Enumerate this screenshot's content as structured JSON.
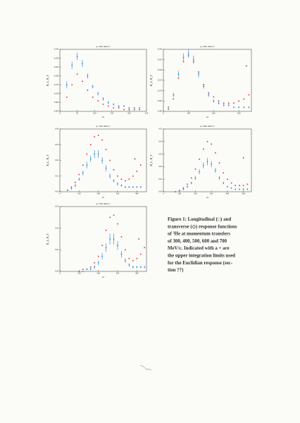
{
  "chart_data": [
    {
      "type": "scatter",
      "title": "q= 300. MeV/c",
      "x_label": "ω",
      "y_label": "R_L, R_T",
      "xlim": [
        0,
        250
      ],
      "xticks": [
        0,
        50,
        100,
        150,
        200,
        250
      ],
      "ylim": [
        0,
        0.035
      ],
      "yticks": [
        {
          "value": 0,
          "label": "0.000"
        },
        0.005,
        {
          "value": 0.01,
          "label": "0.010"
        },
        0.015,
        {
          "value": 0.02,
          "label": "0.020"
        },
        0.025,
        {
          "value": 0.03,
          "label": "0.030"
        },
        0.035
      ],
      "series": [
        {
          "color": "#e0302a",
          "x": [
            20,
            35,
            50,
            65,
            80,
            95,
            110,
            125,
            140,
            155,
            170,
            185,
            200,
            215,
            230
          ],
          "values": [
            0.008,
            0.015,
            0.021,
            0.017,
            0.012,
            0.008,
            0.006,
            0.004,
            0.003,
            0.002,
            0.002,
            0.001,
            0.001,
            0.001,
            0.001
          ]
        },
        {
          "color": "#3b8fd9",
          "x": [
            20,
            35,
            50,
            65,
            80,
            95,
            110,
            125,
            140,
            155,
            170,
            185,
            200,
            215,
            230
          ],
          "values": [
            0.015,
            0.026,
            0.031,
            0.027,
            0.02,
            0.014,
            0.01,
            0.007,
            0.005,
            0.004,
            0.003,
            0.003,
            0.002,
            0.002,
            0.002
          ],
          "errors": [
            0.002,
            0.002,
            0.002,
            0.002,
            0.0015,
            0.001,
            0.001,
            0.001,
            0.0008,
            0.0006,
            0.0005,
            0.0005,
            0.0004,
            0.0004,
            0.0004
          ]
        }
      ]
    },
    {
      "type": "scatter",
      "title": "q= 400. MeV/c",
      "x_label": "ω",
      "y_label": "R_L, R_T",
      "xlim": [
        0,
        350
      ],
      "xticks": [
        0,
        100,
        200,
        300
      ],
      "ylim": [
        0,
        0.03
      ],
      "yticks": [
        {
          "value": 0,
          "label": "0.000"
        },
        0.005,
        {
          "value": 0.01,
          "label": "0.010"
        },
        0.015,
        {
          "value": 0.02,
          "label": "0.020"
        },
        0.025,
        {
          "value": 0.03,
          "label": "0.030"
        }
      ],
      "upper_limit": {
        "x": 330,
        "y": 0.022
      },
      "series": [
        {
          "color": "#e0302a",
          "x": [
            20,
            40,
            60,
            80,
            100,
            120,
            140,
            160,
            180,
            200,
            220,
            240,
            260,
            280,
            300,
            320,
            340
          ],
          "values": [
            0.001,
            0.006,
            0.016,
            0.024,
            0.027,
            0.024,
            0.019,
            0.013,
            0.009,
            0.007,
            0.005,
            0.004,
            0.004,
            0.004,
            0.005,
            0.006,
            0.008
          ]
        },
        {
          "color": "#3b8fd9",
          "x": [
            20,
            40,
            60,
            80,
            100,
            120,
            140,
            160,
            180,
            200,
            220,
            240,
            260,
            280,
            300,
            320,
            340
          ],
          "values": [
            0.002,
            0.008,
            0.018,
            0.026,
            0.028,
            0.025,
            0.018,
            0.012,
            0.008,
            0.005,
            0.004,
            0.003,
            0.003,
            0.002,
            0.002,
            0.002,
            0.002
          ],
          "errors": [
            0.0005,
            0.001,
            0.0015,
            0.002,
            0.002,
            0.002,
            0.0015,
            0.001,
            0.001,
            0.0008,
            0.0006,
            0.0005,
            0.0005,
            0.0004,
            0.0004,
            0.0004,
            0.0004
          ]
        }
      ]
    },
    {
      "type": "scatter",
      "title": "q= 500. MeV/c",
      "x_label": "ω",
      "y_label": "R_L, R_T",
      "xlim": [
        0,
        450
      ],
      "xticks": [
        0,
        100,
        200,
        300,
        400
      ],
      "ylim": [
        0,
        0.04
      ],
      "yticks": [
        {
          "value": 0,
          "label": "0.00"
        },
        0.01,
        0.02,
        0.03,
        0.04
      ],
      "upper_limit": {
        "x": 390,
        "y": 0.021
      },
      "series": [
        {
          "color": "#e0302a",
          "x": [
            40,
            60,
            80,
            100,
            120,
            140,
            160,
            180,
            200,
            220,
            240,
            260,
            280,
            300,
            320,
            340,
            360,
            380,
            400,
            420
          ],
          "values": [
            0.001,
            0.003,
            0.006,
            0.011,
            0.017,
            0.024,
            0.03,
            0.035,
            0.036,
            0.033,
            0.027,
            0.02,
            0.014,
            0.01,
            0.008,
            0.007,
            0.008,
            0.01,
            0.013,
            0.017
          ]
        },
        {
          "color": "#3b8fd9",
          "x": [
            40,
            60,
            80,
            100,
            120,
            140,
            160,
            180,
            200,
            220,
            240,
            260,
            280,
            300,
            320,
            340,
            360,
            380,
            400,
            420
          ],
          "values": [
            0.001,
            0.002,
            0.004,
            0.008,
            0.012,
            0.017,
            0.021,
            0.024,
            0.024,
            0.02,
            0.015,
            0.01,
            0.007,
            0.005,
            0.004,
            0.003,
            0.003,
            0.003,
            0.003,
            0.003
          ],
          "errors": [
            0.0005,
            0.0005,
            0.001,
            0.001,
            0.0015,
            0.002,
            0.002,
            0.0025,
            0.0025,
            0.002,
            0.002,
            0.0015,
            0.001,
            0.001,
            0.0008,
            0.0006,
            0.0006,
            0.0006,
            0.0006,
            0.0006
          ]
        }
      ]
    },
    {
      "type": "scatter",
      "title": "q= 600. MeV/c",
      "x_label": "ω",
      "y_label": "R_L, R_T",
      "xlim": [
        0,
        550
      ],
      "xticks": [
        0,
        100,
        200,
        300,
        400,
        500
      ],
      "ylim": [
        0,
        0.05
      ],
      "yticks": [
        {
          "value": 0,
          "label": "0.00"
        },
        0.01,
        0.02,
        0.03,
        0.04,
        0.05
      ],
      "upper_limit": {
        "x": 500,
        "y": 0.027
      },
      "series": [
        {
          "color": "#e0302a",
          "x": [
            75,
            100,
            125,
            150,
            175,
            200,
            225,
            250,
            275,
            300,
            325,
            350,
            375,
            400,
            425,
            450,
            475,
            500,
            525
          ],
          "values": [
            0,
            0.001,
            0.003,
            0.006,
            0.011,
            0.018,
            0.026,
            0.034,
            0.04,
            0.038,
            0.031,
            0.023,
            0.015,
            0.01,
            0.007,
            0.005,
            0.005,
            0.005,
            0.006
          ]
        },
        {
          "color": "#3b8fd9",
          "x": [
            75,
            100,
            125,
            150,
            175,
            200,
            225,
            250,
            275,
            300,
            325,
            350,
            375,
            400,
            425,
            450,
            475,
            500,
            525
          ],
          "values": [
            0,
            0.001,
            0.002,
            0.004,
            0.007,
            0.011,
            0.016,
            0.021,
            0.024,
            0.022,
            0.017,
            0.011,
            0.007,
            0.004,
            0.003,
            0.002,
            0.002,
            0.002,
            0.002
          ],
          "errors": [
            0.0003,
            0.0005,
            0.0005,
            0.001,
            0.001,
            0.0015,
            0.002,
            0.0025,
            0.003,
            0.0025,
            0.002,
            0.0015,
            0.001,
            0.0008,
            0.0006,
            0.0005,
            0.0005,
            0.0005,
            0.0005
          ]
        }
      ]
    },
    {
      "type": "scatter",
      "title": "q= 700. MeV/c",
      "x_label": "ω",
      "y_label": "R_L, R_T",
      "xlim": [
        0,
        450
      ],
      "xticks": [
        0,
        100,
        200,
        300,
        400
      ],
      "ylim": [
        0,
        0.03
      ],
      "yticks": [
        {
          "value": 0,
          "label": "0.00"
        },
        0.01,
        0.02,
        0.03
      ],
      "upper_limit": {
        "x": 410,
        "y": 0.015
      },
      "series": [
        {
          "color": "#e0302a",
          "x": [
            100,
            120,
            140,
            160,
            180,
            200,
            220,
            240,
            260,
            280,
            300,
            320,
            340,
            360,
            380,
            400,
            420,
            440
          ],
          "values": [
            0,
            0.001,
            0.001,
            0.002,
            0.004,
            0.007,
            0.012,
            0.019,
            0.025,
            0.026,
            0.022,
            0.016,
            0.01,
            0.006,
            0.005,
            0.006,
            0.008,
            0.011
          ]
        },
        {
          "color": "#3b8fd9",
          "x": [
            100,
            120,
            140,
            160,
            180,
            200,
            220,
            240,
            260,
            280,
            300,
            320,
            340,
            360,
            380,
            400,
            420,
            440
          ],
          "values": [
            0,
            0,
            0.001,
            0.001,
            0.002,
            0.004,
            0.007,
            0.011,
            0.015,
            0.015,
            0.012,
            0.008,
            0.005,
            0.003,
            0.002,
            0.002,
            0.002,
            0.002
          ],
          "errors": [
            0.0003,
            0.0003,
            0.0004,
            0.0005,
            0.0008,
            0.001,
            0.0015,
            0.002,
            0.0025,
            0.0025,
            0.002,
            0.0015,
            0.001,
            0.0008,
            0.0006,
            0.0005,
            0.0005,
            0.0005
          ]
        }
      ]
    }
  ],
  "caption": {
    "lines": [
      "Figure 1: Longitudinal (□) and",
      "transverse (◇) response functions",
      "of ³He at momentum transfers",
      "of 300, 400, 500, 600 and 700",
      "MeV/c. Indicated with a + are",
      "the upper integration limits used",
      "for the Euclidian response (sec-",
      "tion ??)"
    ]
  }
}
